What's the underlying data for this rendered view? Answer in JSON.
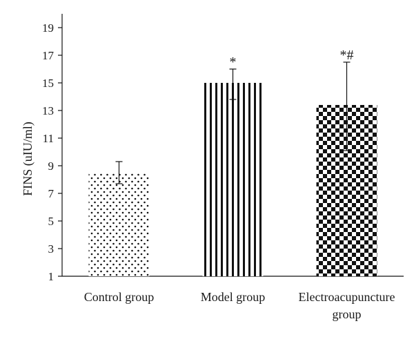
{
  "chart_data": {
    "type": "bar",
    "title": "",
    "xlabel": "",
    "ylabel": "FINS (uIU/ml)",
    "ylim": [
      1,
      20
    ],
    "yticks": [
      1,
      3,
      5,
      7,
      9,
      11,
      13,
      15,
      17,
      19
    ],
    "grid": false,
    "legend": "none",
    "categories": [
      [
        "Control group"
      ],
      [
        "Model group"
      ],
      [
        "Electroacupuncture",
        "group"
      ]
    ],
    "values": [
      8.5,
      15.0,
      13.4
    ],
    "error_upper": [
      9.3,
      16.0,
      16.5
    ],
    "error_lower": [
      7.7,
      13.8,
      10.1
    ],
    "annotations": [
      "",
      "*",
      "*#"
    ],
    "patterns": [
      "dots",
      "vertical-stripes",
      "checkerboard"
    ],
    "colors": {
      "ink": "#111111",
      "background": "#ffffff"
    }
  }
}
